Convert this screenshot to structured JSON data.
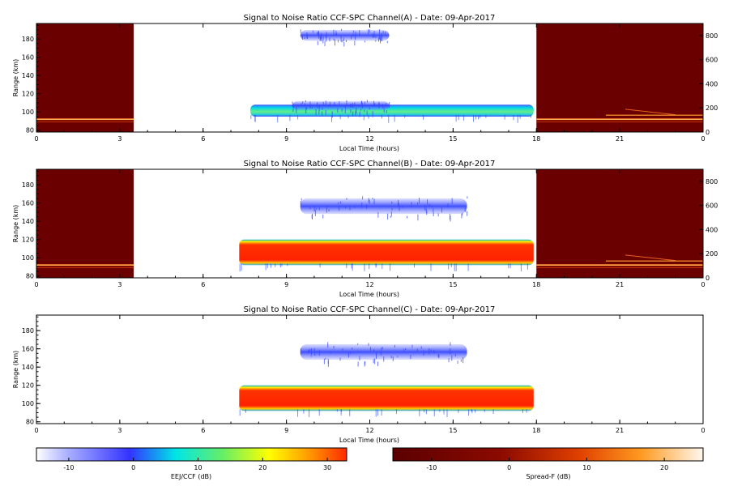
{
  "chart_data": [
    {
      "type": "heatmap",
      "title": "Signal to Noise Ratio CCF-SPC Channel(A) - Date: 09-Apr-2017",
      "xlabel": "Local Time (hours)",
      "ylabel": "Range (km)",
      "xlim": [
        0,
        24
      ],
      "ylim": [
        78,
        197
      ],
      "xticks": [
        "0",
        "3",
        "6",
        "9",
        "12",
        "15",
        "18",
        "21",
        "0"
      ],
      "xtick_values": [
        0,
        3,
        6,
        9,
        12,
        15,
        18,
        21,
        24
      ],
      "yticks": [
        "80",
        "100",
        "120",
        "140",
        "160",
        "180"
      ],
      "ytick_values": [
        80,
        100,
        120,
        140,
        160,
        180
      ],
      "right_ylim": [
        0,
        900
      ],
      "right_yticks": [
        "0",
        "200",
        "400",
        "600",
        "800"
      ],
      "right_ytick_values": [
        0,
        200,
        400,
        600,
        800
      ],
      "spreadf_blocks": [
        [
          0,
          3.5
        ],
        [
          18,
          24
        ]
      ],
      "eej_echoes": [
        {
          "x0": 7.7,
          "x1": 17.9,
          "y0": 95,
          "y1": 108,
          "snr_db": 8
        },
        {
          "x0": 9.2,
          "x1": 12.7,
          "y0": 102,
          "y1": 112,
          "snr_db": -4
        },
        {
          "x0": 9.5,
          "x1": 12.7,
          "y0": 178,
          "y1": 190,
          "snr_db": -6
        }
      ]
    },
    {
      "type": "heatmap",
      "title": "Signal to Noise Ratio CCF-SPC Channel(B) - Date: 09-Apr-2017",
      "xlabel": "Local Time (hours)",
      "ylabel": "Range (km)",
      "xlim": [
        0,
        24
      ],
      "ylim": [
        78,
        197
      ],
      "xticks": [
        "0",
        "3",
        "6",
        "9",
        "12",
        "15",
        "18",
        "21",
        "0"
      ],
      "xtick_values": [
        0,
        3,
        6,
        9,
        12,
        15,
        18,
        21,
        24
      ],
      "yticks": [
        "80",
        "100",
        "120",
        "140",
        "160",
        "180"
      ],
      "ytick_values": [
        80,
        100,
        120,
        140,
        160,
        180
      ],
      "right_ylim": [
        0,
        900
      ],
      "right_yticks": [
        "0",
        "200",
        "400",
        "600",
        "800"
      ],
      "right_ytick_values": [
        0,
        200,
        400,
        600,
        800
      ],
      "spreadf_blocks": [
        [
          0,
          3.5
        ],
        [
          18,
          24
        ]
      ],
      "eej_echoes": [
        {
          "x0": 7.3,
          "x1": 17.9,
          "y0": 92,
          "y1": 120,
          "snr_db": 30
        },
        {
          "x0": 9.5,
          "x1": 15.5,
          "y0": 148,
          "y1": 165,
          "snr_db": -6
        }
      ]
    },
    {
      "type": "heatmap",
      "title": "Signal to Noise Ratio CCF-SPC Channel(C) - Date: 09-Apr-2017",
      "xlabel": "Local Time (hours)",
      "ylabel": "Range (km)",
      "xlim": [
        0,
        24
      ],
      "ylim": [
        78,
        197
      ],
      "xticks": [
        "0",
        "3",
        "6",
        "9",
        "12",
        "15",
        "18",
        "21",
        "0"
      ],
      "xtick_values": [
        0,
        3,
        6,
        9,
        12,
        15,
        18,
        21,
        24
      ],
      "yticks": [
        "80",
        "100",
        "120",
        "140",
        "160",
        "180"
      ],
      "ytick_values": [
        80,
        100,
        120,
        140,
        160,
        180
      ],
      "spreadf_blocks": [],
      "eej_echoes": [
        {
          "x0": 7.3,
          "x1": 17.9,
          "y0": 92,
          "y1": 120,
          "snr_db": 30
        },
        {
          "x0": 9.5,
          "x1": 15.5,
          "y0": 148,
          "y1": 165,
          "snr_db": -6
        }
      ]
    }
  ],
  "colorbars": [
    {
      "label": "EEJ/CCF (dB)",
      "range": [
        -15,
        33
      ],
      "ticks": [
        "-10",
        "0",
        "10",
        "20",
        "30"
      ],
      "tick_values": [
        -10,
        0,
        10,
        20,
        30
      ],
      "colors": [
        "#ffffff",
        "#3333ff",
        "#00e6e6",
        "#ffff00",
        "#ff2a00"
      ]
    },
    {
      "label": "Spread-F (dB)",
      "range": [
        -15,
        25
      ],
      "ticks": [
        "-10",
        "0",
        "10",
        "20"
      ],
      "tick_values": [
        -10,
        0,
        10,
        20
      ],
      "colors": [
        "#5a0000",
        "#b01d00",
        "#ff7a00",
        "#fff7e6"
      ]
    }
  ]
}
